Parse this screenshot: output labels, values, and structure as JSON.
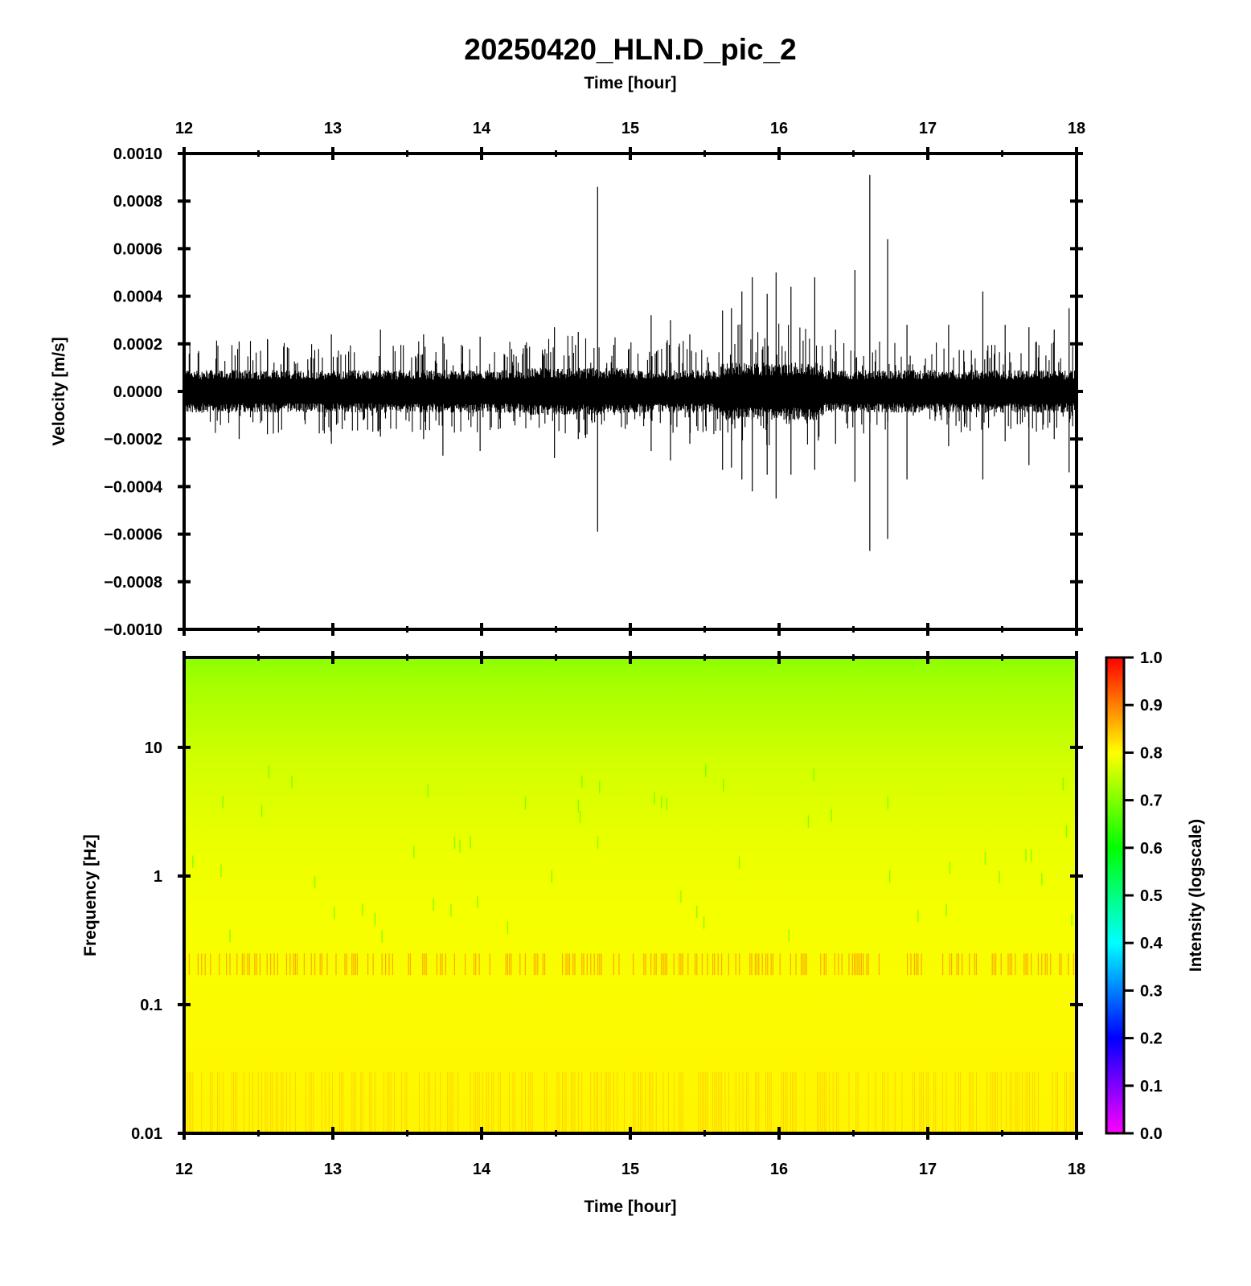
{
  "chart_data": [
    {
      "type": "line",
      "panel": "waveform",
      "title": "20250420_HLN.D_pic_2",
      "xlabel": "Time [hour]",
      "ylabel": "Velocity [m/s]",
      "xlim": [
        12,
        18
      ],
      "ylim": [
        -0.001,
        0.001
      ],
      "x_ticks": [
        "12",
        "13",
        "14",
        "15",
        "16",
        "17",
        "18"
      ],
      "y_ticks": [
        "0.0010",
        "0.0008",
        "0.0006",
        "0.0004",
        "0.0002",
        "0.0000",
        "−0.0002",
        "−0.0004",
        "−0.0006",
        "−0.0008",
        "−0.0010"
      ],
      "background_noise_amplitude": 9e-05,
      "spikes": [
        {
          "x": 14.78,
          "max": 0.00086,
          "min": -0.00059
        },
        {
          "x": 16.61,
          "max": 0.00091,
          "min": -0.00067
        },
        {
          "x": 16.73,
          "max": 0.00064,
          "min": -0.00062
        },
        {
          "x": 15.82,
          "max": 0.00048,
          "min": -0.00042
        },
        {
          "x": 15.98,
          "max": 0.0005,
          "min": -0.00045
        },
        {
          "x": 16.24,
          "max": 0.00048,
          "min": -0.00033
        },
        {
          "x": 16.51,
          "max": 0.00051,
          "min": -0.00038
        },
        {
          "x": 16.08,
          "max": 0.00044,
          "min": -0.00035
        },
        {
          "x": 15.75,
          "max": 0.00042,
          "min": -0.00037
        },
        {
          "x": 15.68,
          "max": 0.00035,
          "min": -0.00032
        },
        {
          "x": 15.62,
          "max": 0.00034,
          "min": -0.00033
        },
        {
          "x": 15.92,
          "max": 0.00041,
          "min": -0.00035
        },
        {
          "x": 17.37,
          "max": 0.00042,
          "min": -0.00037
        },
        {
          "x": 17.95,
          "max": 0.00035,
          "min": -0.00034
        },
        {
          "x": 17.68,
          "max": 0.00027,
          "min": -0.00031
        },
        {
          "x": 16.86,
          "max": 0.00028,
          "min": -0.00037
        },
        {
          "x": 15.14,
          "max": 0.00032,
          "min": -0.00025
        },
        {
          "x": 15.27,
          "max": 0.0003,
          "min": -0.00029
        },
        {
          "x": 14.49,
          "max": 0.00027,
          "min": -0.00028
        },
        {
          "x": 13.74,
          "max": 0.00023,
          "min": -0.00027
        },
        {
          "x": 13.99,
          "max": 0.00023,
          "min": -0.00025
        },
        {
          "x": 13.32,
          "max": 0.00026,
          "min": -0.00019
        },
        {
          "x": 12.99,
          "max": 0.00024,
          "min": -0.00022
        },
        {
          "x": 12.37,
          "max": 0.00021,
          "min": -0.0002
        },
        {
          "x": 12.56,
          "max": 0.00022,
          "min": -0.00018
        },
        {
          "x": 13.61,
          "max": 0.00024,
          "min": -0.0002
        },
        {
          "x": 14.65,
          "max": 0.00025,
          "min": -0.0002
        },
        {
          "x": 15.4,
          "max": 0.00024,
          "min": -0.00022
        },
        {
          "x": 16.38,
          "max": 0.00026,
          "min": -0.00022
        },
        {
          "x": 17.14,
          "max": 0.00028,
          "min": -0.00023
        },
        {
          "x": 17.52,
          "max": 0.00028,
          "min": -0.00021
        },
        {
          "x": 17.85,
          "max": 0.00026,
          "min": -0.0002
        }
      ]
    },
    {
      "type": "heatmap",
      "panel": "spectrogram",
      "xlabel": "Time [hour]",
      "ylabel": "Frequency [Hz]",
      "xlim": [
        12,
        18
      ],
      "ylim": [
        0.01,
        50
      ],
      "yscale": "log",
      "x_ticks": [
        "12",
        "13",
        "14",
        "15",
        "16",
        "17",
        "18"
      ],
      "y_ticks": [
        "10",
        "1",
        "0.1",
        "0.01"
      ],
      "colorbar": {
        "label": "Intensity (logscale)",
        "range": [
          0.0,
          1.0
        ],
        "ticks": [
          "1.0",
          "0.9",
          "0.8",
          "0.7",
          "0.6",
          "0.5",
          "0.4",
          "0.3",
          "0.2",
          "0.1",
          "0.0"
        ],
        "colormap": [
          "#ff00ff",
          "#0000ff",
          "#00ffff",
          "#00ff00",
          "#ffff00",
          "#ff0000"
        ]
      },
      "intensity_profile": [
        {
          "freq": 0.01,
          "intensity": 0.82
        },
        {
          "freq": 0.05,
          "intensity": 0.8
        },
        {
          "freq": 0.15,
          "intensity": 0.8
        },
        {
          "freq": 0.2,
          "intensity": 0.84
        },
        {
          "freq": 0.3,
          "intensity": 0.79
        },
        {
          "freq": 1,
          "intensity": 0.77
        },
        {
          "freq": 3,
          "intensity": 0.74
        },
        {
          "freq": 10,
          "intensity": 0.71
        },
        {
          "freq": 30,
          "intensity": 0.67
        },
        {
          "freq": 50,
          "intensity": 0.65
        }
      ]
    }
  ]
}
